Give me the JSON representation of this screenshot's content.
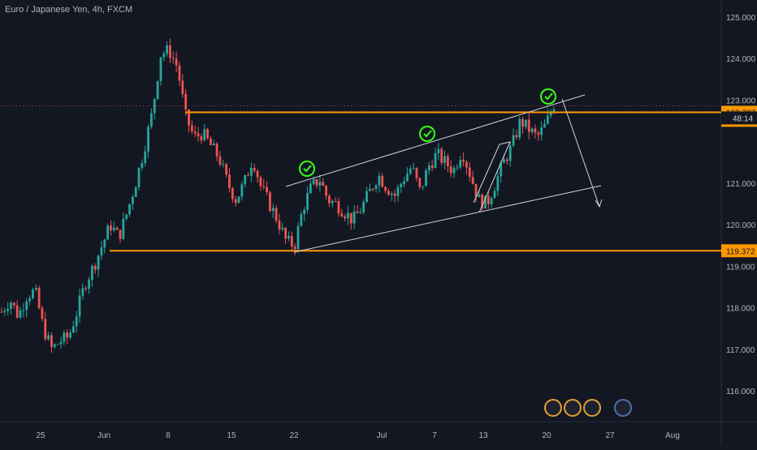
{
  "chart_data": {
    "type": "candlestick",
    "title": "Euro / Japanese Yen, 4h, FXCM",
    "symbol": "Euro / Japanese Yen",
    "interval": "4h",
    "source": "FXCM",
    "ylim": [
      115.1,
      125.3
    ],
    "y_ticks": [
      "125.000",
      "124.000",
      "123.000",
      "121.000",
      "120.000",
      "119.000",
      "118.000",
      "117.000",
      "116.000"
    ],
    "x_ticks": [
      "25",
      "Jun",
      "8",
      "15",
      "22",
      "Jul",
      "7",
      "13",
      "20",
      "27",
      "Aug"
    ],
    "price_labels": [
      {
        "value": 122.707,
        "text": "122.707",
        "color": "#ff9800"
      },
      {
        "value": 122.513,
        "text": "122.513",
        "color": "#ff9800"
      },
      {
        "value": 119.372,
        "text": "119.372",
        "color": "#ff9800"
      }
    ],
    "countdown": "48:14",
    "horizontal_levels": [
      122.707,
      119.372
    ],
    "series": [
      {
        "x_range": [
          "May 19",
          "Jul 21"
        ],
        "path": [
          117.9,
          118.2,
          117.8,
          118.3,
          118.4,
          117.5,
          117.0,
          117.2,
          117.3,
          117.9,
          118.6,
          119.0,
          119.5,
          120.0,
          119.7,
          120.3,
          121.0,
          121.8,
          122.7,
          124.1,
          124.2,
          123.8,
          122.6,
          122.1,
          122.2,
          121.9,
          121.6,
          121.0,
          120.6,
          121.0,
          121.6,
          120.9,
          120.5,
          120.1,
          119.6,
          119.5,
          120.4,
          120.9,
          121.1,
          120.6,
          120.5,
          120.3,
          120.1,
          120.4,
          120.8,
          121.2,
          120.9,
          120.7,
          121.1,
          121.4,
          120.8,
          121.4,
          121.7,
          121.5,
          121.3,
          121.8,
          121.2,
          120.6,
          120.5,
          121.0,
          121.5,
          121.9,
          122.5,
          122.3,
          122.1,
          122.4,
          122.9
        ]
      }
    ],
    "annotations": {
      "channel_upper": [
        [
          121.1,
          "Jun 22"
        ],
        [
          123.2,
          "Jul 23"
        ]
      ],
      "channel_lower": [
        [
          119.4,
          "Jun 22"
        ],
        [
          121.0,
          "Jul 23"
        ]
      ],
      "checkmarks": 3,
      "projection_arrow": "down"
    }
  }
}
